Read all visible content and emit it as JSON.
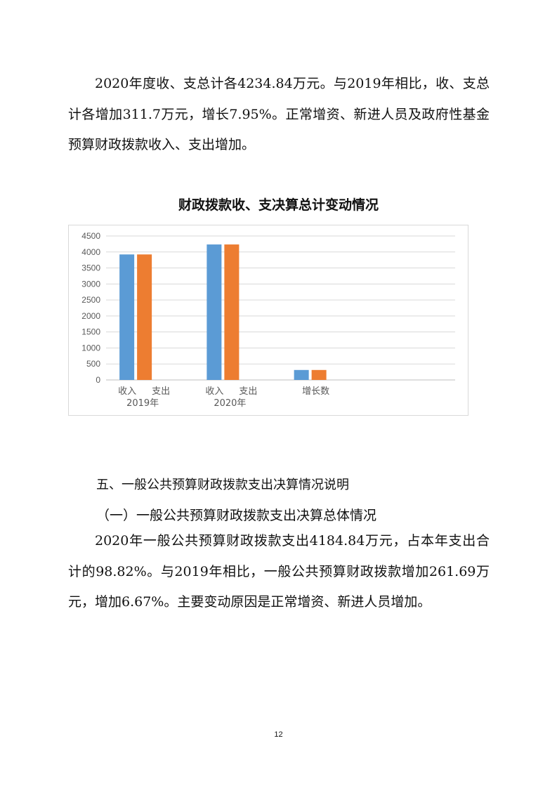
{
  "paragraph1": "2020年度收、支总计各4234.84万元。与2019年相比，收、支总计各增加311.7万元，增长7.95%。正常增资、新进人员及政府性基金预算财政拨款收入、支出增加。",
  "chart_data": {
    "type": "bar",
    "title": "财政拨款收、支决算总计变动情况",
    "categories": [
      [
        "收入",
        "支出",
        "2019年"
      ],
      [
        "收入",
        "支出",
        "2020年"
      ],
      [
        "增长数"
      ],
      [
        ""
      ]
    ],
    "category_labels": {
      "g1_sub": [
        "收入",
        "支出"
      ],
      "g1": "2019年",
      "g2_sub": [
        "收入",
        "支出"
      ],
      "g2": "2020年",
      "g3": "增长数"
    },
    "series": [
      {
        "values": [
          3923.14,
          4234.84,
          311.7,
          null
        ],
        "color": "#5b9bd5"
      },
      {
        "values": [
          3923.14,
          4234.84,
          311.7,
          null
        ],
        "color": "#ed7d31"
      }
    ],
    "yticks": [
      "0",
      "500",
      "1000",
      "1500",
      "2000",
      "2500",
      "3000",
      "3500",
      "4000",
      "4500"
    ],
    "ylim": [
      0,
      4500
    ],
    "grid": true,
    "legend": "none"
  },
  "section_heading": "五、一般公共预算财政拨款支出决算情况说明",
  "subheading": "（一）一般公共预算财政拨款支出决算总体情况",
  "paragraph2": "2020年一般公共预算财政拨款支出4184.84万元，占本年支出合计的98.82%。与2019年相比，一般公共预算财政拨款增加261.69万元，增加6.67%。主要变动原因是正常增资、新进人员增加。",
  "page_number": "12"
}
